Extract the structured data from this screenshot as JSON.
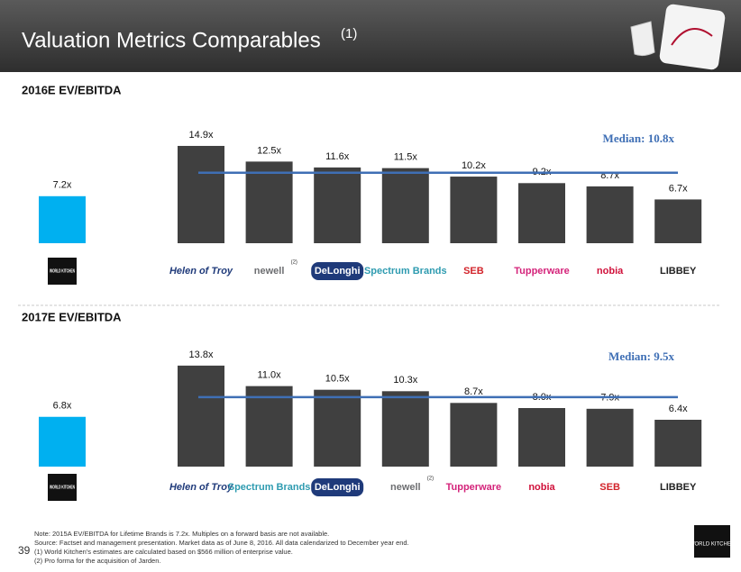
{
  "slide": {
    "title": "Valuation Metrics Comparables",
    "title_note": "(1)",
    "page_number": "39",
    "footer_logo": "WORLD KITCHEN",
    "notes": [
      "Note:   2015A EV/EBITDA for Lifetime Brands is 7.2x. Multiples on a forward basis are not available.",
      "Source: Factset and management presentation. Market data as of June 8, 2016. All data calendarized to December year end.",
      "(1)      World Kitchen's estimates are calculated based on $566 million of enterprise value.",
      "(2)      Pro forma for the acquisition of Jarden."
    ]
  },
  "chart_data": [
    {
      "type": "bar",
      "title": "2016E EV/EBITDA",
      "categories": [
        "WORLD KITCHEN",
        "Helen of Troy",
        "newell",
        "DeLonghi",
        "Spectrum Brands",
        "SEB",
        "Tupperware",
        "nobia",
        "LIBBEY"
      ],
      "category_marks": [
        null,
        null,
        "(2)",
        null,
        null,
        null,
        null,
        null,
        null
      ],
      "logo_colors": [
        "#ffffff",
        "#1f3a7a",
        "#6d6e71",
        "#ffffff",
        "#2e9bb0",
        "#d2232a",
        "#d4237a",
        "#d0103a",
        "#222222"
      ],
      "logo_backgrounds": [
        "#111111",
        null,
        null,
        "#1f3a7a",
        null,
        null,
        null,
        null,
        null
      ],
      "values": [
        7.2,
        14.9,
        12.5,
        11.6,
        11.5,
        10.2,
        9.2,
        8.7,
        6.7
      ],
      "value_labels": [
        "7.2x",
        "14.9x",
        "12.5x",
        "11.6x",
        "11.5x",
        "10.2x",
        "9.2x",
        "8.7x",
        "6.7x"
      ],
      "colors": [
        "#00b0f0",
        "#404040",
        "#404040",
        "#404040",
        "#404040",
        "#404040",
        "#404040",
        "#404040",
        "#404040"
      ],
      "median": {
        "value": 10.8,
        "label": "Median: 10.8x"
      },
      "median_color": "#3f6fb5",
      "ylim": [
        0,
        16
      ]
    },
    {
      "type": "bar",
      "title": "2017E EV/EBITDA",
      "categories": [
        "WORLD KITCHEN",
        "Helen of Troy",
        "Spectrum Brands",
        "DeLonghi",
        "newell",
        "Tupperware",
        "nobia",
        "SEB",
        "LIBBEY"
      ],
      "category_marks": [
        null,
        null,
        null,
        null,
        "(2)",
        null,
        null,
        null,
        null
      ],
      "logo_colors": [
        "#ffffff",
        "#1f3a7a",
        "#2e9bb0",
        "#ffffff",
        "#6d6e71",
        "#d4237a",
        "#d0103a",
        "#d2232a",
        "#222222"
      ],
      "logo_backgrounds": [
        "#111111",
        null,
        null,
        "#1f3a7a",
        null,
        null,
        null,
        null,
        null
      ],
      "values": [
        6.8,
        13.8,
        11.0,
        10.5,
        10.3,
        8.7,
        8.0,
        7.9,
        6.4
      ],
      "value_labels": [
        "6.8x",
        "13.8x",
        "11.0x",
        "10.5x",
        "10.3x",
        "8.7x",
        "8.0x",
        "7.9x",
        "6.4x"
      ],
      "colors": [
        "#00b0f0",
        "#404040",
        "#404040",
        "#404040",
        "#404040",
        "#404040",
        "#404040",
        "#404040",
        "#404040"
      ],
      "median": {
        "value": 9.5,
        "label": "Median: 9.5x"
      },
      "median_color": "#3f6fb5",
      "ylim": [
        0,
        16
      ]
    }
  ]
}
